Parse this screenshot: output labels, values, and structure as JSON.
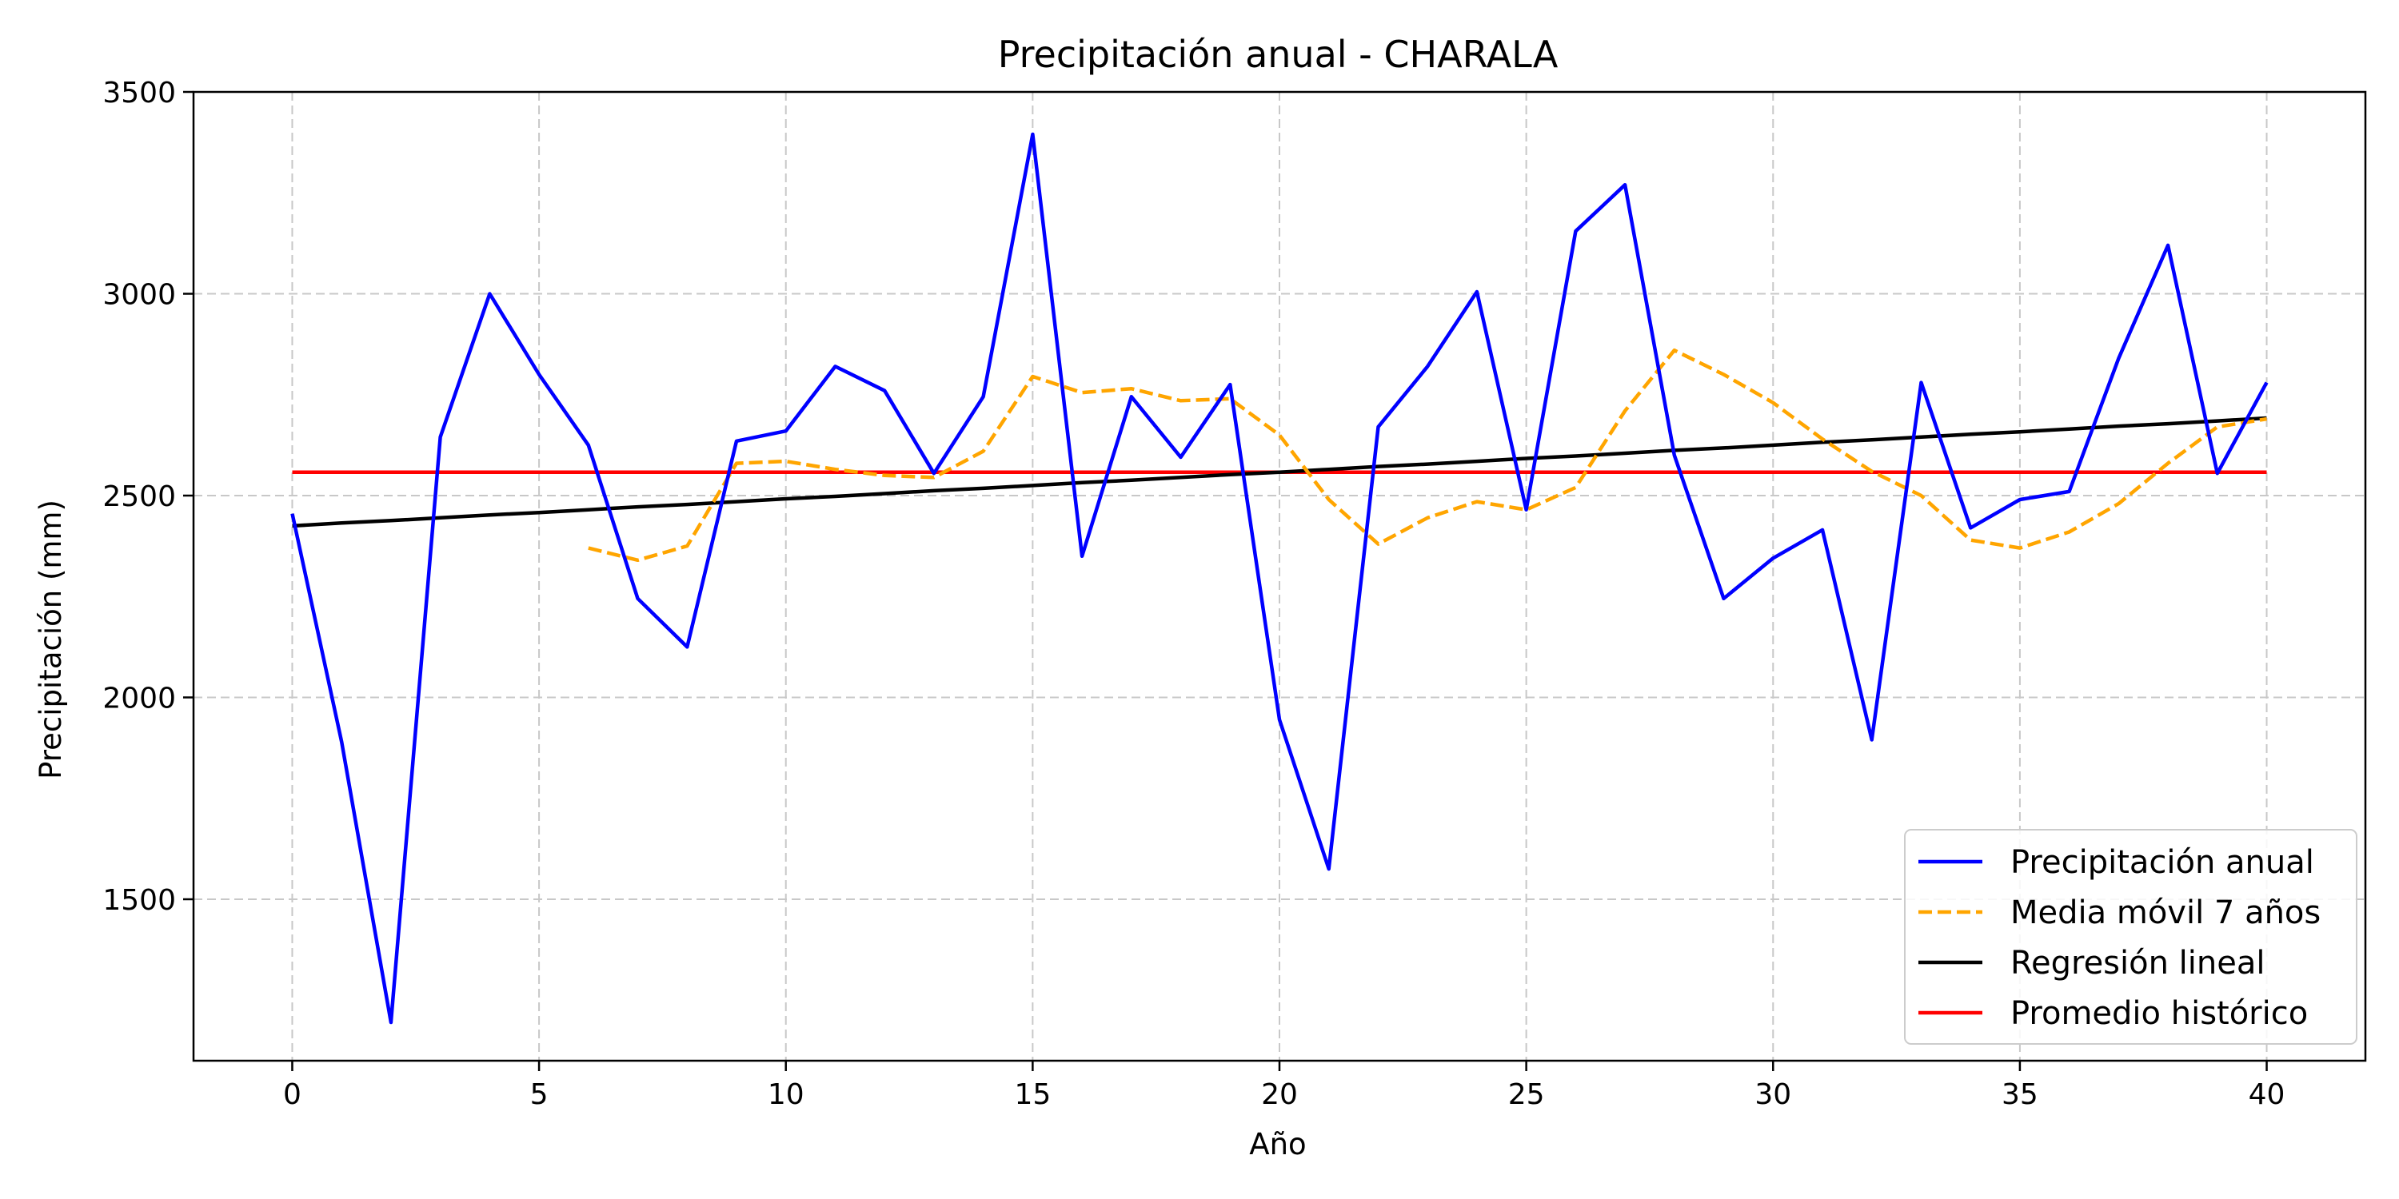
{
  "chart_data": {
    "type": "line",
    "title": "Precipitación anual - CHARALA",
    "xlabel": "Año",
    "ylabel": "Precipitación (mm)",
    "xlim": [
      -2,
      42
    ],
    "ylim": [
      1100,
      3500
    ],
    "xticks": [
      0,
      5,
      10,
      15,
      20,
      25,
      30,
      35,
      40
    ],
    "yticks": [
      1500,
      2000,
      2500,
      3000,
      3500
    ],
    "grid": true,
    "legend_position": "bottom-right",
    "x": [
      0,
      1,
      2,
      3,
      4,
      5,
      6,
      7,
      8,
      9,
      10,
      11,
      12,
      13,
      14,
      15,
      16,
      17,
      18,
      19,
      20,
      21,
      22,
      23,
      24,
      25,
      26,
      27,
      28,
      29,
      30,
      31,
      32,
      33,
      34,
      35,
      36,
      37,
      38,
      39,
      40
    ],
    "series": [
      {
        "name": "Precipitación anual",
        "color": "#0000ff",
        "style": "solid",
        "values": [
          2455,
          1890,
          1195,
          2645,
          3000,
          2800,
          2625,
          2245,
          2125,
          2635,
          2660,
          2820,
          2760,
          2555,
          2745,
          3395,
          2350,
          2745,
          2595,
          2775,
          1945,
          1575,
          2670,
          2820,
          3005,
          2465,
          3155,
          3270,
          2600,
          2245,
          2345,
          2415,
          1895,
          2780,
          2420,
          2490,
          2510,
          2840,
          3120,
          2555,
          2780
        ]
      },
      {
        "name": "Media móvil 7 años",
        "color": "#ffa500",
        "style": "dashed",
        "values": [
          null,
          null,
          null,
          null,
          null,
          null,
          2370,
          2340,
          2375,
          2580,
          2585,
          2565,
          2550,
          2545,
          2610,
          2795,
          2755,
          2765,
          2735,
          2740,
          2650,
          2490,
          2380,
          2445,
          2485,
          2465,
          2520,
          2710,
          2860,
          2800,
          2730,
          2640,
          2560,
          2500,
          2390,
          2370,
          2410,
          2480,
          2580,
          2670,
          2690
        ]
      },
      {
        "name": "Regresión lineal",
        "color": "#000000",
        "style": "solid",
        "values": [
          2425,
          2432,
          2438,
          2445,
          2452,
          2458,
          2465,
          2472,
          2478,
          2485,
          2492,
          2498,
          2505,
          2512,
          2518,
          2525,
          2532,
          2538,
          2545,
          2552,
          2558,
          2565,
          2572,
          2578,
          2585,
          2592,
          2598,
          2605,
          2612,
          2618,
          2625,
          2632,
          2638,
          2645,
          2652,
          2658,
          2665,
          2672,
          2678,
          2685,
          2692
        ]
      },
      {
        "name": "Promedio histórico",
        "color": "#ff0000",
        "style": "solid",
        "values": [
          2558,
          2558,
          2558,
          2558,
          2558,
          2558,
          2558,
          2558,
          2558,
          2558,
          2558,
          2558,
          2558,
          2558,
          2558,
          2558,
          2558,
          2558,
          2558,
          2558,
          2558,
          2558,
          2558,
          2558,
          2558,
          2558,
          2558,
          2558,
          2558,
          2558,
          2558,
          2558,
          2558,
          2558,
          2558,
          2558,
          2558,
          2558,
          2558,
          2558,
          2558
        ]
      }
    ]
  }
}
